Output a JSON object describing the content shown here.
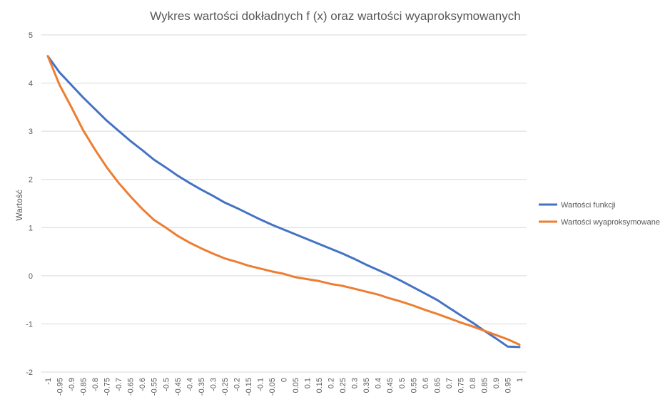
{
  "chart_data": {
    "type": "line",
    "title": "Wykres wartości dokładnych f (x) oraz wartości wyaproksymowanych",
    "xlabel": "",
    "ylabel": "Wartość",
    "ylim": [
      -2,
      5
    ],
    "y_ticks": [
      5,
      4,
      3,
      2,
      1,
      0,
      -1,
      -2
    ],
    "grid": true,
    "legend_position": "right",
    "categories": [
      "-1",
      "-0.95",
      "-0.9",
      "-0.85",
      "-0.8",
      "-0.75",
      "-0.7",
      "-0.65",
      "-0.6",
      "-0.55",
      "-0.5",
      "-0.45",
      "-0.4",
      "-0.35",
      "-0.3",
      "-0.25",
      "-0.2",
      "-0.15",
      "-0.1",
      "-0.05",
      "0",
      "0.05",
      "0.1",
      "0.15",
      "0.2",
      "0.25",
      "0.3",
      "0.35",
      "0.4",
      "0.45",
      "0.5",
      "0.55",
      "0.6",
      "0.65",
      "0.7",
      "0.75",
      "0.8",
      "0.85",
      "0.9",
      "0.95",
      "1"
    ],
    "series": [
      {
        "name": "Wartości funkcji",
        "color": "#4472c4",
        "values": [
          4.56,
          4.22,
          3.96,
          3.7,
          3.46,
          3.22,
          3.01,
          2.8,
          2.61,
          2.41,
          2.25,
          2.08,
          1.93,
          1.79,
          1.66,
          1.52,
          1.41,
          1.29,
          1.17,
          1.06,
          0.96,
          0.86,
          0.76,
          0.66,
          0.56,
          0.46,
          0.35,
          0.23,
          0.12,
          0.01,
          -0.11,
          -0.24,
          -0.37,
          -0.5,
          -0.66,
          -0.82,
          -0.97,
          -1.14,
          -1.3,
          -1.47,
          -1.48
        ]
      },
      {
        "name": "Wartości wyaproksymowane",
        "color": "#ed7d31",
        "values": [
          4.56,
          3.96,
          3.5,
          3.02,
          2.62,
          2.25,
          1.93,
          1.65,
          1.39,
          1.16,
          1.0,
          0.83,
          0.69,
          0.57,
          0.46,
          0.36,
          0.29,
          0.21,
          0.15,
          0.09,
          0.04,
          -0.03,
          -0.07,
          -0.11,
          -0.17,
          -0.21,
          -0.27,
          -0.33,
          -0.39,
          -0.47,
          -0.54,
          -0.62,
          -0.71,
          -0.79,
          -0.88,
          -0.97,
          -1.05,
          -1.14,
          -1.23,
          -1.32,
          -1.43
        ]
      }
    ]
  }
}
